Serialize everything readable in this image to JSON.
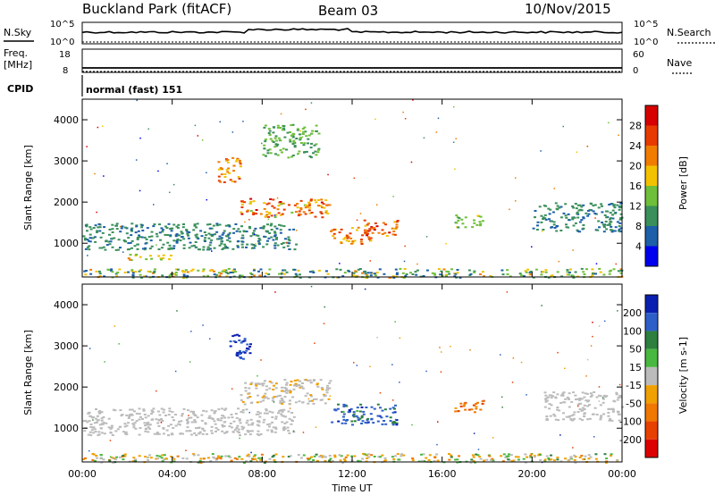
{
  "header": {
    "station": "Buckland Park (fitACF)",
    "beam": "Beam 03",
    "date": "10/Nov/2015"
  },
  "top_panels": {
    "nsky_label": "N.Sky",
    "nsearch_label": "N.Search",
    "nsky_ticks": [
      "10^5",
      "10^0"
    ],
    "nsearch_ticks": [
      "10^5",
      "10^0"
    ],
    "freq_label_1": "Freq.",
    "freq_label_2": "[MHz]",
    "freq_ticks": [
      "18",
      "8"
    ],
    "nave_label": "Nave",
    "nave_ticks": [
      "60",
      "0"
    ],
    "cpid_label": "CPID",
    "cpid_text": "normal (fast) 151"
  },
  "colors": {
    "power_scale": [
      "#0000ee",
      "#1d5fa8",
      "#3a8f5a",
      "#6fbf3a",
      "#f2c200",
      "#f07d00",
      "#e83a00",
      "#d60000"
    ],
    "velocity_scale": [
      "#0a1fb0",
      "#2e5fc8",
      "#2f7f3f",
      "#49b840",
      "#bbbbbb",
      "#f0a000",
      "#f07800",
      "#e84000",
      "#dd0000"
    ]
  },
  "chart_data": [
    {
      "type": "heatmap",
      "name": "power-panel",
      "ylabel": "Slant Range [km]",
      "xlabel": "Time UT",
      "x_ticks": [
        "00:00",
        "04:00",
        "08:00",
        "12:00",
        "16:00",
        "20:00",
        "00:00"
      ],
      "x_range_hours": [
        0,
        24
      ],
      "y_ticks": [
        1000,
        2000,
        3000,
        4000
      ],
      "ylim": [
        180,
        4500
      ],
      "colorbar": {
        "label": "Power [dB]",
        "ticks": [
          "4",
          "8",
          "12",
          "16",
          "20",
          "24",
          "28"
        ],
        "range": [
          0,
          30
        ]
      },
      "features": [
        {
          "t": [
            0.0,
            9.5
          ],
          "r": [
            850,
            1500
          ],
          "v": [
            6,
            11
          ]
        },
        {
          "t": [
            2.0,
            4.0
          ],
          "r": [
            600,
            750
          ],
          "v": [
            12,
            20
          ]
        },
        {
          "t": [
            6.0,
            7.0
          ],
          "r": [
            2500,
            3100
          ],
          "v": [
            16,
            26
          ]
        },
        {
          "t": [
            7.0,
            11.0
          ],
          "r": [
            1650,
            2100
          ],
          "v": [
            14,
            28
          ]
        },
        {
          "t": [
            8.0,
            10.5
          ],
          "r": [
            3100,
            3900
          ],
          "v": [
            8,
            14
          ]
        },
        {
          "t": [
            11.0,
            12.8
          ],
          "r": [
            1000,
            1400
          ],
          "v": [
            16,
            26
          ]
        },
        {
          "t": [
            12.5,
            14.0
          ],
          "r": [
            1200,
            1600
          ],
          "v": [
            18,
            28
          ]
        },
        {
          "t": [
            16.5,
            17.8
          ],
          "r": [
            1400,
            1700
          ],
          "v": [
            10,
            16
          ]
        },
        {
          "t": [
            20.0,
            24.0
          ],
          "r": [
            1300,
            2000
          ],
          "v": [
            6,
            10
          ]
        },
        {
          "t": [
            0.0,
            24.0
          ],
          "r": [
            180,
            400
          ],
          "v": [
            4,
            20
          ]
        }
      ]
    },
    {
      "type": "heatmap",
      "name": "velocity-panel",
      "ylabel": "Slant Range [km]",
      "xlabel": "Time UT",
      "x_ticks": [
        "00:00",
        "04:00",
        "08:00",
        "12:00",
        "16:00",
        "20:00",
        "00:00"
      ],
      "x_range_hours": [
        0,
        24
      ],
      "y_ticks": [
        1000,
        2000,
        3000,
        4000
      ],
      "ylim": [
        180,
        4500
      ],
      "colorbar": {
        "label": "Velocity [m s-1]",
        "ticks": [
          "200",
          "100",
          "50",
          "15",
          "-15",
          "-50",
          "-100",
          "-200"
        ],
        "range": [
          -250,
          250
        ]
      },
      "features": [
        {
          "t": [
            0.0,
            9.5
          ],
          "r": [
            850,
            1500
          ],
          "v": [
            -10,
            10
          ]
        },
        {
          "t": [
            6.5,
            7.5
          ],
          "r": [
            2700,
            3300
          ],
          "v": [
            180,
            230
          ]
        },
        {
          "t": [
            7.0,
            11.0
          ],
          "r": [
            1600,
            2200
          ],
          "v": [
            -20,
            15
          ]
        },
        {
          "t": [
            11.0,
            14.0
          ],
          "r": [
            1100,
            1600
          ],
          "v": [
            40,
            220
          ]
        },
        {
          "t": [
            16.5,
            17.8
          ],
          "r": [
            1400,
            1700
          ],
          "v": [
            -120,
            -40
          ]
        },
        {
          "t": [
            20.5,
            24.0
          ],
          "r": [
            1200,
            1900
          ],
          "v": [
            -10,
            10
          ]
        },
        {
          "t": [
            0.0,
            24.0
          ],
          "r": [
            180,
            400
          ],
          "v": [
            -60,
            60
          ]
        }
      ]
    }
  ]
}
